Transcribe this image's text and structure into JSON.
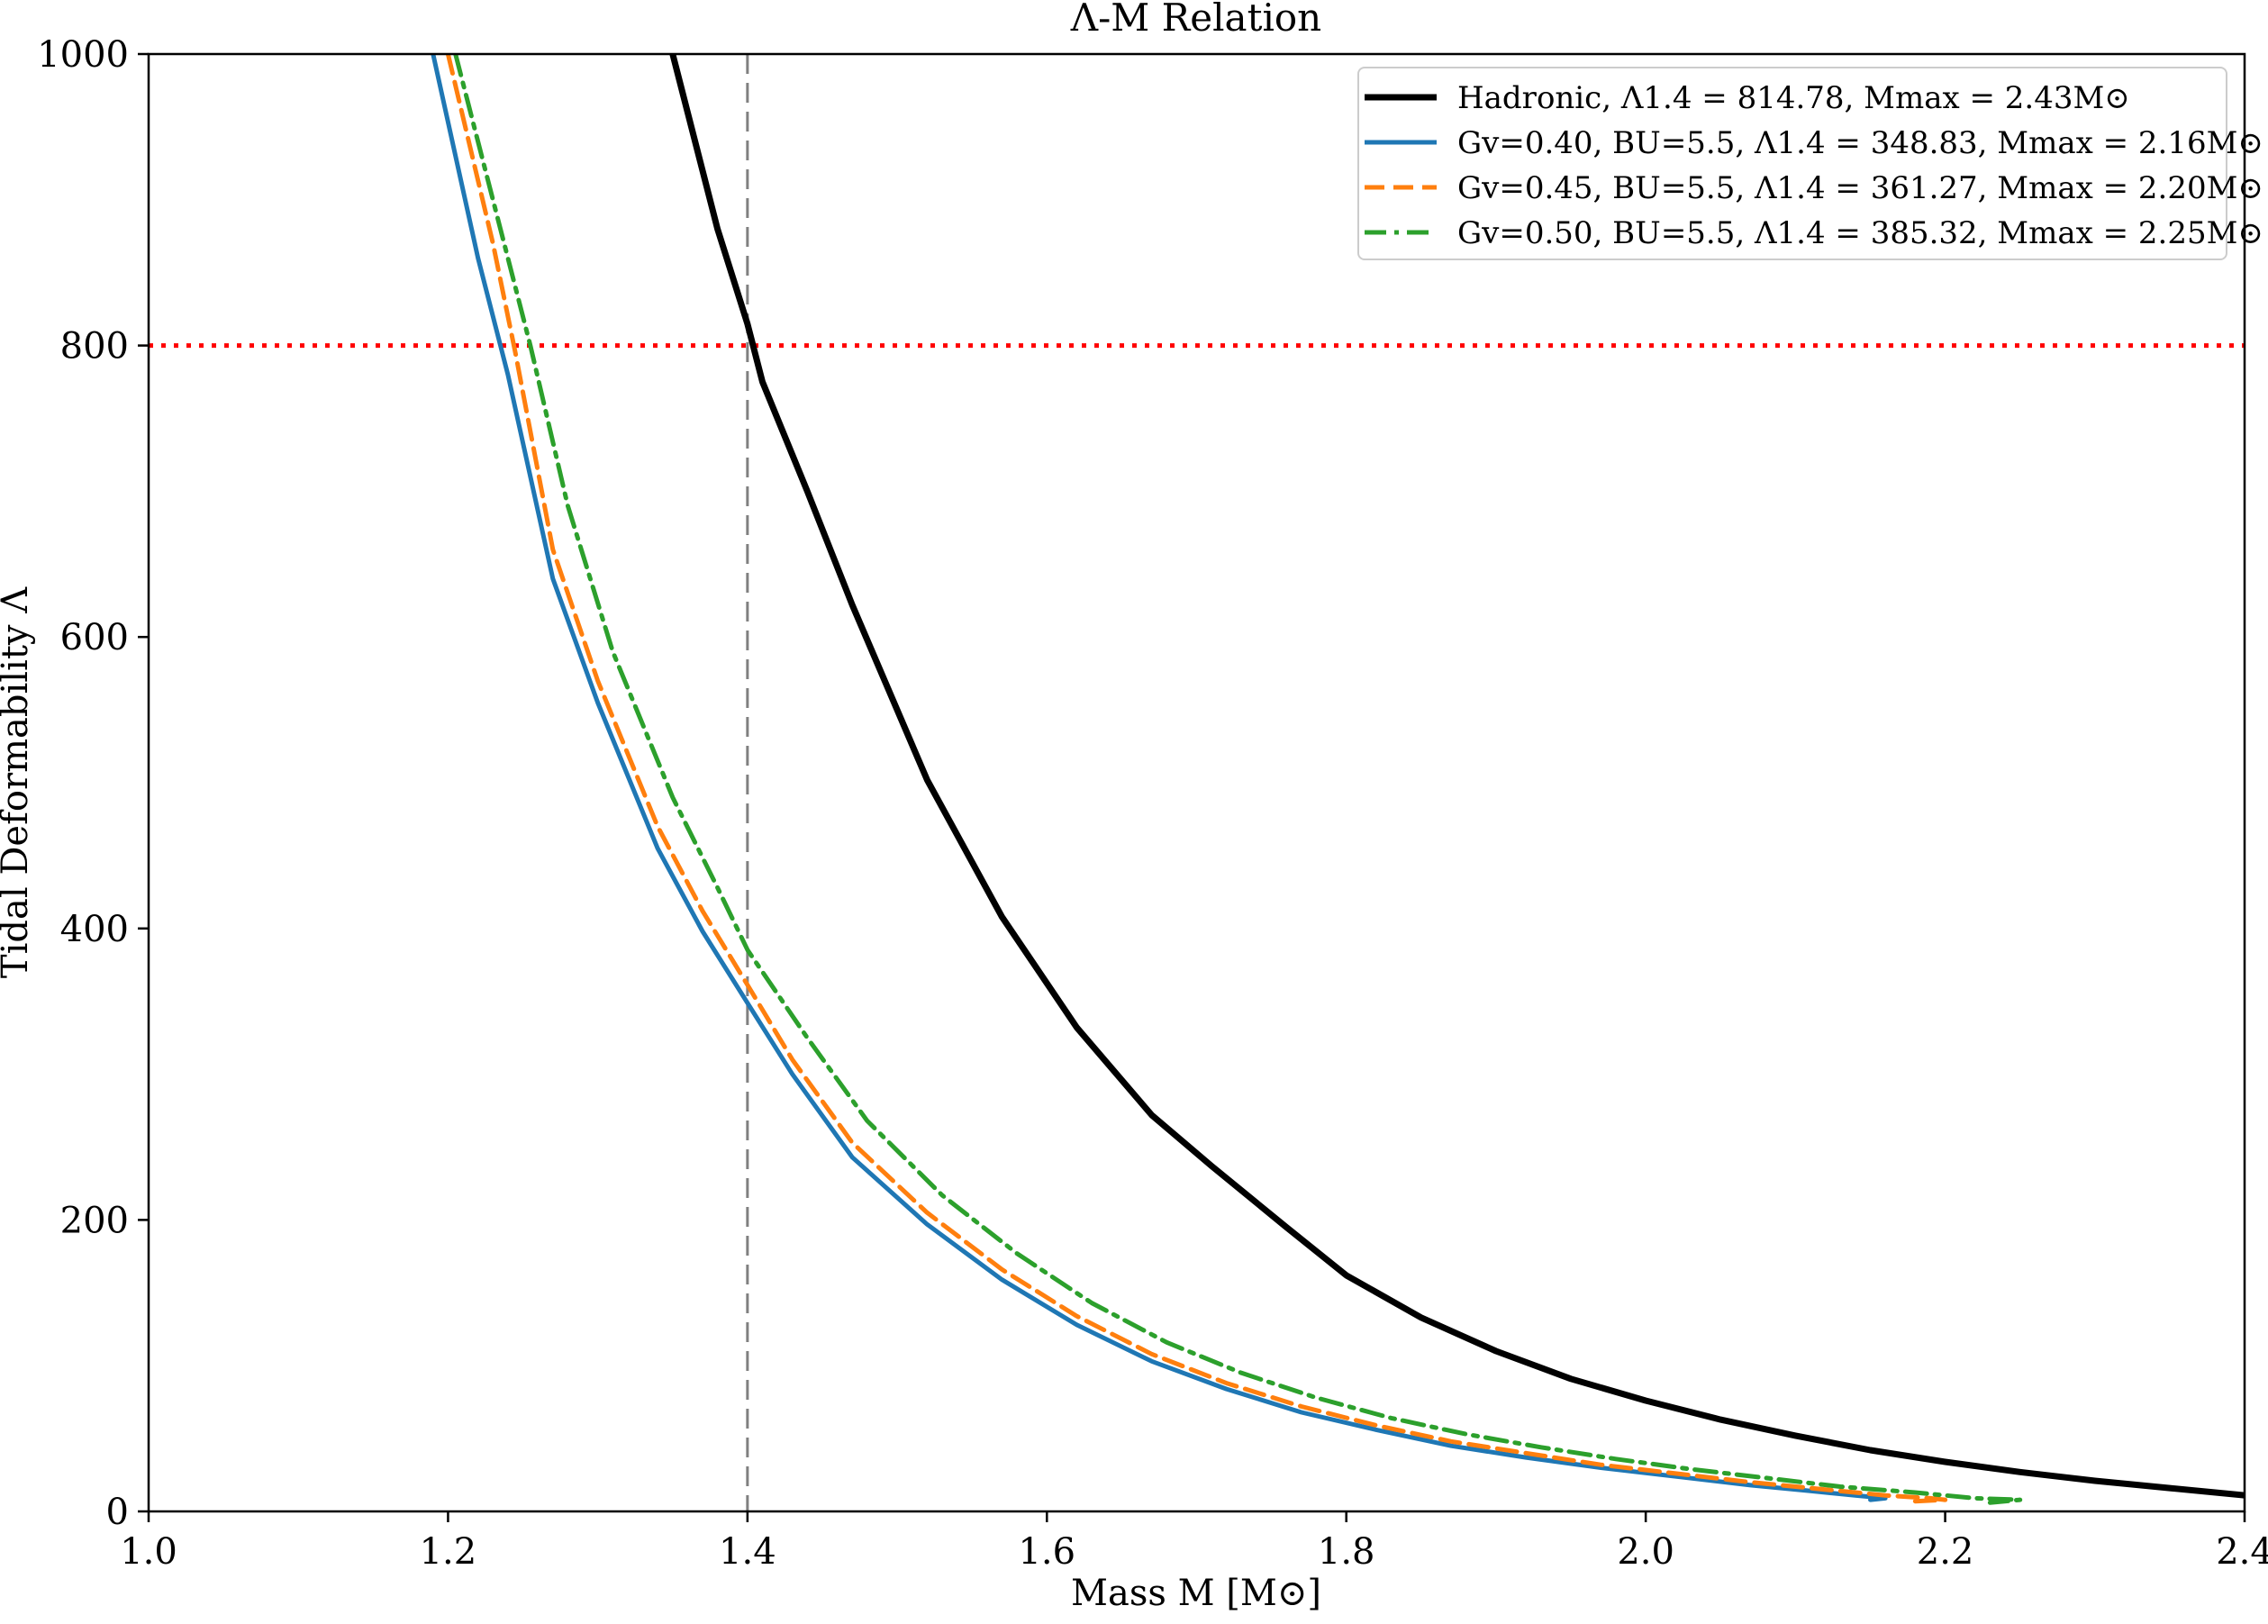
{
  "chart_data": {
    "type": "line",
    "title": "Λ-M Relation",
    "xlabel": "Mass M [M⊙]",
    "ylabel": "Tidal Deformability Λ",
    "xlim": [
      1.0,
      2.4
    ],
    "ylim": [
      0,
      1000
    ],
    "x_ticks": [
      "1.0",
      "1.2",
      "1.4",
      "1.6",
      "1.8",
      "2.0",
      "2.2",
      "2.4"
    ],
    "y_ticks": [
      "0",
      "200",
      "400",
      "600",
      "800",
      "1000"
    ],
    "grid": false,
    "legend_position": "top-right",
    "reference_lines": [
      {
        "orientation": "vertical",
        "value": 1.4,
        "color": "#808080",
        "style": "dashed"
      },
      {
        "orientation": "horizontal",
        "value": 800,
        "color": "#ff0000",
        "style": "dotted"
      }
    ],
    "series": [
      {
        "name": "Hadronic, Λ1.4 = 814.78, Mmax = 2.43M⊙",
        "color": "#000000",
        "style": "solid",
        "x": [
          1.35,
          1.36,
          1.38,
          1.4,
          1.41,
          1.44,
          1.47,
          1.52,
          1.57,
          1.62,
          1.67,
          1.71,
          1.76,
          1.8,
          1.85,
          1.9,
          1.95,
          2.0,
          2.05,
          2.1,
          2.15,
          2.2,
          2.25,
          2.3,
          2.35,
          2.4
        ],
        "y": [
          1000,
          960,
          880,
          814.78,
          775,
          700,
          622,
          502,
          408,
          332,
          272,
          237,
          195,
          162,
          133,
          110,
          91,
          76,
          63,
          52,
          42,
          34,
          27,
          21,
          16,
          11
        ]
      },
      {
        "name": "Gv=0.40, BU=5.5, Λ1.4 = 348.83, Mmax = 2.16M⊙",
        "color": "#1f77b4",
        "style": "solid",
        "x": [
          1.19,
          1.22,
          1.24,
          1.27,
          1.3,
          1.34,
          1.37,
          1.4,
          1.43,
          1.47,
          1.52,
          1.57,
          1.62,
          1.67,
          1.72,
          1.77,
          1.82,
          1.87,
          1.92,
          1.97,
          2.02,
          2.07,
          2.11,
          2.14,
          2.155,
          2.16,
          2.15
        ],
        "y": [
          1000,
          860,
          780,
          640,
          555,
          455,
          398,
          348.83,
          300,
          243,
          197,
          159,
          128,
          103,
          84,
          68,
          56,
          45,
          37,
          30,
          24,
          18,
          14,
          11,
          9.5,
          9,
          8
        ]
      },
      {
        "name": "Gv=0.45, BU=5.5, Λ1.4 = 361.27, Mmax = 2.20M⊙",
        "color": "#ff7f0e",
        "style": "dashed",
        "x": [
          1.2,
          1.23,
          1.245,
          1.27,
          1.3,
          1.34,
          1.37,
          1.4,
          1.43,
          1.47,
          1.52,
          1.57,
          1.62,
          1.67,
          1.72,
          1.77,
          1.82,
          1.87,
          1.92,
          1.97,
          2.02,
          2.07,
          2.12,
          2.16,
          2.19,
          2.2,
          2.18
        ],
        "y": [
          1000,
          870,
          795,
          660,
          570,
          470,
          412,
          361.27,
          310,
          253,
          205,
          166,
          134,
          108,
          88,
          72,
          59,
          48,
          40,
          32,
          26,
          20,
          15,
          11,
          9,
          8,
          7
        ]
      },
      {
        "name": "Gv=0.50, BU=5.5, Λ1.4 = 385.32, Mmax = 2.25M⊙",
        "color": "#2ca02c",
        "style": "dashdot",
        "x": [
          1.205,
          1.235,
          1.255,
          1.28,
          1.31,
          1.35,
          1.38,
          1.4,
          1.44,
          1.48,
          1.53,
          1.58,
          1.63,
          1.68,
          1.73,
          1.78,
          1.83,
          1.88,
          1.93,
          1.98,
          2.03,
          2.08,
          2.13,
          2.18,
          2.22,
          2.25,
          2.23
        ],
        "y": [
          1000,
          880,
          800,
          690,
          590,
          490,
          428,
          385.32,
          325,
          268,
          217,
          177,
          143,
          116,
          95,
          78,
          64,
          53,
          44,
          36,
          29,
          23,
          17,
          13,
          9,
          8,
          6
        ]
      }
    ]
  }
}
